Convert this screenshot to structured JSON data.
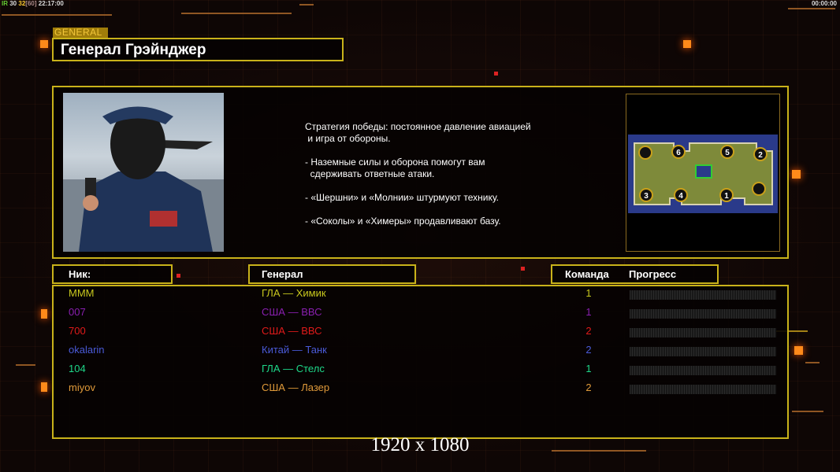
{
  "status": {
    "fps_label": "IR",
    "fps": "30",
    "fps2": "32",
    "limit": "[60]",
    "time": "22:17:00"
  },
  "clock": "00:00:00",
  "header": {
    "tag": "GENERAL",
    "title": "Генерал Грэйнджер"
  },
  "description": "Стратегия победы: постоянное давление авиацией\n и игра от обороны.\n\n- Наземные силы и оборона помогут вам\n  сдерживать ответные атаки.\n\n- «Шершни» и «Молнии» штурмуют технику.\n\n- «Соколы» и «Химеры» продавливают базу.",
  "map": {
    "spawns": [
      "6",
      "5",
      "2",
      "3",
      "4",
      "1"
    ]
  },
  "table": {
    "headers": {
      "nick": "Ник:",
      "general": "Генерал",
      "team": "Команда",
      "progress": "Прогресс"
    },
    "rows": [
      {
        "nick": "MMM",
        "general": "ГЛА — Химик",
        "team": "1",
        "color": "#c8c81e",
        "progress": 0
      },
      {
        "nick": "007",
        "general": "США — ВВС",
        "team": "1",
        "color": "#8a1fb0",
        "progress": 0
      },
      {
        "nick": "700",
        "general": "США — ВВС",
        "team": "2",
        "color": "#e01a1a",
        "progress": 0
      },
      {
        "nick": "okalarin",
        "general": "Китай — Танк",
        "team": "2",
        "color": "#4a5ad8",
        "progress": 0
      },
      {
        "nick": "104",
        "general": "ГЛА — Стелс",
        "team": "1",
        "color": "#1ed88a",
        "progress": 0
      },
      {
        "nick": "miyov",
        "general": "США — Лазер",
        "team": "2",
        "color": "#e09a3a",
        "progress": 0
      }
    ]
  },
  "resolution": "1920 x 1080"
}
